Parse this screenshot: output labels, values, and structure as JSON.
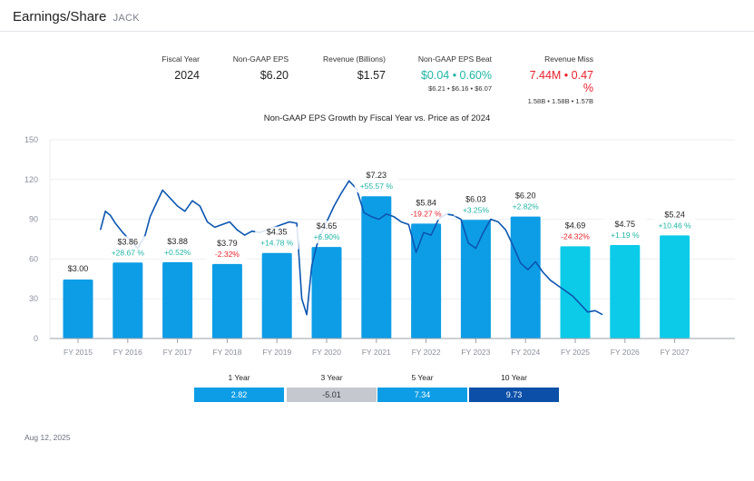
{
  "header": {
    "title": "Earnings/Share",
    "ticker": "JACK"
  },
  "stats": {
    "fiscal_year": {
      "label": "Fiscal Year",
      "value": "2024"
    },
    "eps": {
      "label": "Non-GAAP EPS",
      "value": "$6.20"
    },
    "revenue": {
      "label": "Revenue (Billions)",
      "value": "$1.57"
    },
    "eps_beat": {
      "label": "Non-GAAP EPS Beat",
      "value": "$0.04 • 0.60%",
      "sub": "$6.21 • $6.16 • $6.07",
      "color": "#1fb5a4"
    },
    "revenue_miss": {
      "label": "Revenue Miss",
      "value": "7.44M • 0.47 %",
      "sub": "1.58B • 1.58B • 1.57B",
      "color": "#e8222c"
    }
  },
  "periods": [
    {
      "label": "1 Year",
      "value": "2.82",
      "color": "#0d9de6"
    },
    {
      "label": "3 Year",
      "value": "-5.01",
      "color": "#c5c8cf"
    },
    {
      "label": "5 Year",
      "value": "7.34",
      "color": "#0d9de6"
    },
    {
      "label": "10 Year",
      "value": "9.73",
      "color": "#0b4fa8"
    }
  ],
  "footer": {
    "date": "Aug 12, 2025"
  },
  "colors": {
    "bar_actual": "#0d9de6",
    "bar_estimate": "#0ccbe8",
    "price_line": "#0b55b0",
    "positive": "#1fb5a4",
    "negative": "#e8222c",
    "grid": "#eceef2",
    "axis_text": "#8a8f9c"
  },
  "chart_data": {
    "type": "bar",
    "title": "Non-GAAP EPS Growth by Fiscal Year vs. Price as of 2024",
    "xlabel": "",
    "ylabel": "",
    "ylim": [
      0,
      150
    ],
    "yticks": [
      0,
      30,
      60,
      90,
      120,
      150
    ],
    "grid": true,
    "categories": [
      "FY 2015",
      "FY 2016",
      "FY 2017",
      "FY 2018",
      "FY 2019",
      "FY 2020",
      "FY 2021",
      "FY 2022",
      "FY 2023",
      "FY 2024",
      "FY 2025",
      "FY 2026",
      "FY 2027"
    ],
    "series": [
      {
        "name": "Non-GAAP EPS",
        "type": "bar",
        "values": [
          3.0,
          3.86,
          3.88,
          3.79,
          4.35,
          4.65,
          7.23,
          5.84,
          6.03,
          6.2,
          4.69,
          4.75,
          5.24
        ],
        "labels": [
          "$3.00",
          "$3.86",
          "$3.88",
          "$3.79",
          "$4.35",
          "$4.65",
          "$7.23",
          "$5.84",
          "$6.03",
          "$6.20",
          "$4.69",
          "$4.75",
          "$5.24"
        ],
        "growth": [
          "",
          "+28.67 %",
          "+0.52%",
          "-2.32%",
          "+14.78 %",
          "+6.90%",
          "+55.57 %",
          "-19.27 %",
          "+3.25%",
          "+2.82%",
          "-24.32%",
          "+1.19  %",
          "+10.46 %"
        ],
        "estimate": [
          false,
          false,
          false,
          false,
          false,
          false,
          false,
          false,
          false,
          false,
          true,
          true,
          true
        ]
      },
      {
        "name": "Price",
        "type": "line",
        "x": [
          1.0,
          1.1,
          1.2,
          1.3,
          1.45,
          1.6,
          1.75,
          1.9,
          2.0,
          2.1,
          2.25,
          2.4,
          2.55,
          2.7,
          2.85,
          3.0,
          3.15,
          3.3,
          3.45,
          3.6,
          3.75,
          3.9,
          4.05,
          4.2,
          4.35,
          4.5,
          4.65,
          4.8,
          4.95,
          5.05,
          5.15,
          5.25,
          5.35,
          5.45,
          5.55,
          5.7,
          5.85,
          6.0,
          6.15,
          6.3,
          6.45,
          6.6,
          6.75,
          6.9,
          7.05,
          7.2,
          7.35,
          7.5,
          7.65,
          7.8,
          7.95,
          8.1,
          8.25,
          8.4,
          8.55,
          8.7,
          8.85,
          9.0,
          9.15,
          9.3,
          9.45,
          9.6,
          9.75,
          9.9,
          10.05,
          10.2,
          10.35,
          10.5,
          10.65,
          10.8,
          10.95,
          11.1
        ],
        "values": [
          82,
          96,
          93,
          87,
          80,
          74,
          68,
          78,
          92,
          100,
          112,
          106,
          100,
          96,
          104,
          100,
          88,
          84,
          86,
          88,
          82,
          78,
          81,
          80,
          82,
          84,
          86,
          88,
          87,
          30,
          18,
          55,
          70,
          80,
          88,
          100,
          110,
          119,
          113,
          95,
          92,
          90,
          94,
          92,
          88,
          86,
          65,
          80,
          78,
          90,
          94,
          93,
          90,
          72,
          68,
          80,
          90,
          88,
          82,
          70,
          57,
          52,
          58,
          50,
          44,
          40,
          36,
          32,
          26,
          20,
          21,
          18
        ]
      }
    ]
  }
}
